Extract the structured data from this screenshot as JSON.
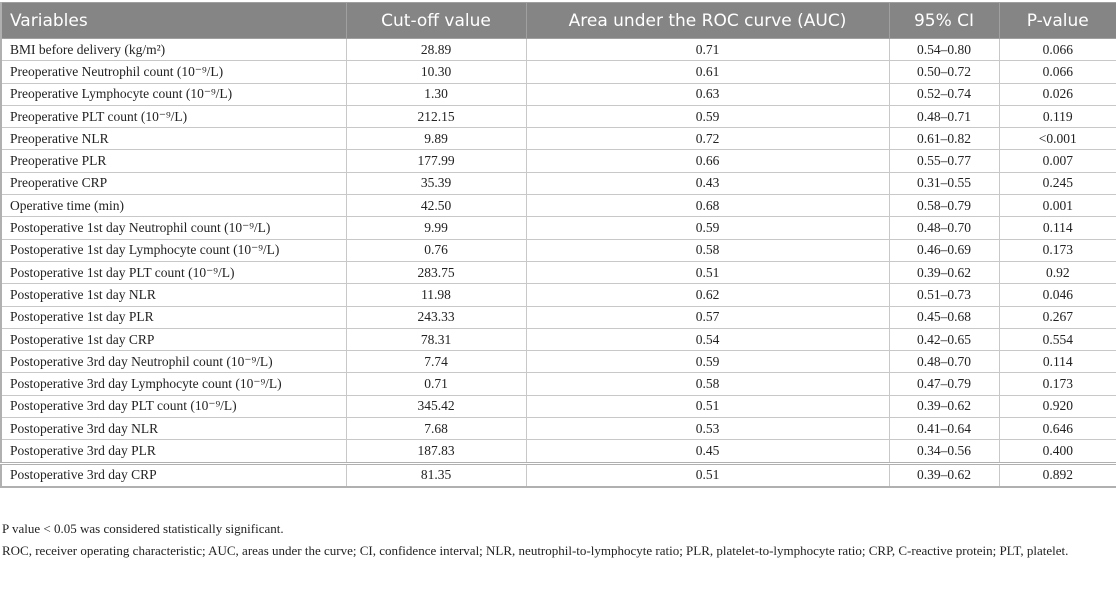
{
  "table": {
    "headers": [
      "Variables",
      "Cut-off value",
      "Area under the ROC curve (AUC)",
      "95% CI",
      "P-value"
    ],
    "rows": [
      [
        "BMI before delivery (kg/m²)",
        "28.89",
        "0.71",
        "0.54–0.80",
        "0.066"
      ],
      [
        "Preoperative Neutrophil count (10⁻⁹/L)",
        "10.30",
        "0.61",
        "0.50–0.72",
        "0.066"
      ],
      [
        "Preoperative Lymphocyte count (10⁻⁹/L)",
        "1.30",
        "0.63",
        "0.52–0.74",
        "0.026"
      ],
      [
        "Preoperative PLT count (10⁻⁹/L)",
        "212.15",
        "0.59",
        "0.48–0.71",
        "0.119"
      ],
      [
        "Preoperative NLR",
        "9.89",
        "0.72",
        "0.61–0.82",
        "<0.001"
      ],
      [
        "Preoperative PLR",
        "177.99",
        "0.66",
        "0.55–0.77",
        "0.007"
      ],
      [
        "Preoperative CRP",
        "35.39",
        "0.43",
        "0.31–0.55",
        "0.245"
      ],
      [
        "Operative time (min)",
        "42.50",
        "0.68",
        "0.58–0.79",
        "0.001"
      ],
      [
        "Postoperative 1st day Neutrophil count (10⁻⁹/L)",
        "9.99",
        "0.59",
        "0.48–0.70",
        "0.114"
      ],
      [
        "Postoperative 1st day Lymphocyte count (10⁻⁹/L)",
        "0.76",
        "0.58",
        "0.46–0.69",
        "0.173"
      ],
      [
        "Postoperative 1st day PLT count (10⁻⁹/L)",
        "283.75",
        "0.51",
        "0.39–0.62",
        "0.92"
      ],
      [
        "Postoperative 1st day NLR",
        "11.98",
        "0.62",
        "0.51–0.73",
        "0.046"
      ],
      [
        "Postoperative 1st day PLR",
        "243.33",
        "0.57",
        "0.45–0.68",
        "0.267"
      ],
      [
        "Postoperative 1st day CRP",
        "78.31",
        "0.54",
        "0.42–0.65",
        "0.554"
      ],
      [
        "Postoperative 3rd day Neutrophil count (10⁻⁹/L)",
        "7.74",
        "0.59",
        "0.48–0.70",
        "0.114"
      ],
      [
        "Postoperative 3rd day Lymphocyte count (10⁻⁹/L)",
        "0.71",
        "0.58",
        "0.47–0.79",
        "0.173"
      ],
      [
        "Postoperative 3rd day PLT count (10⁻⁹/L)",
        "345.42",
        "0.51",
        "0.39–0.62",
        "0.920"
      ],
      [
        "Postoperative 3rd day NLR",
        "7.68",
        "0.53",
        "0.41–0.64",
        "0.646"
      ],
      [
        "Postoperative 3rd day PLR",
        "187.83",
        "0.45",
        "0.34–0.56",
        "0.400"
      ],
      [
        "Postoperative 3rd day CRP",
        "81.35",
        "0.51",
        "0.39–0.62",
        "0.892"
      ]
    ]
  },
  "notes": [
    "P value < 0.05 was considered statistically significant.",
    "ROC, receiver operating characteristic; AUC, areas under the curve; CI, confidence interval; NLR, neutrophil-to-lymphocyte ratio; PLR, platelet-to-lymphocyte ratio; CRP, C-reactive protein; PLT, platelet."
  ],
  "colors": {
    "header_bg": "#858585",
    "header_text": "#ffffff"
  }
}
